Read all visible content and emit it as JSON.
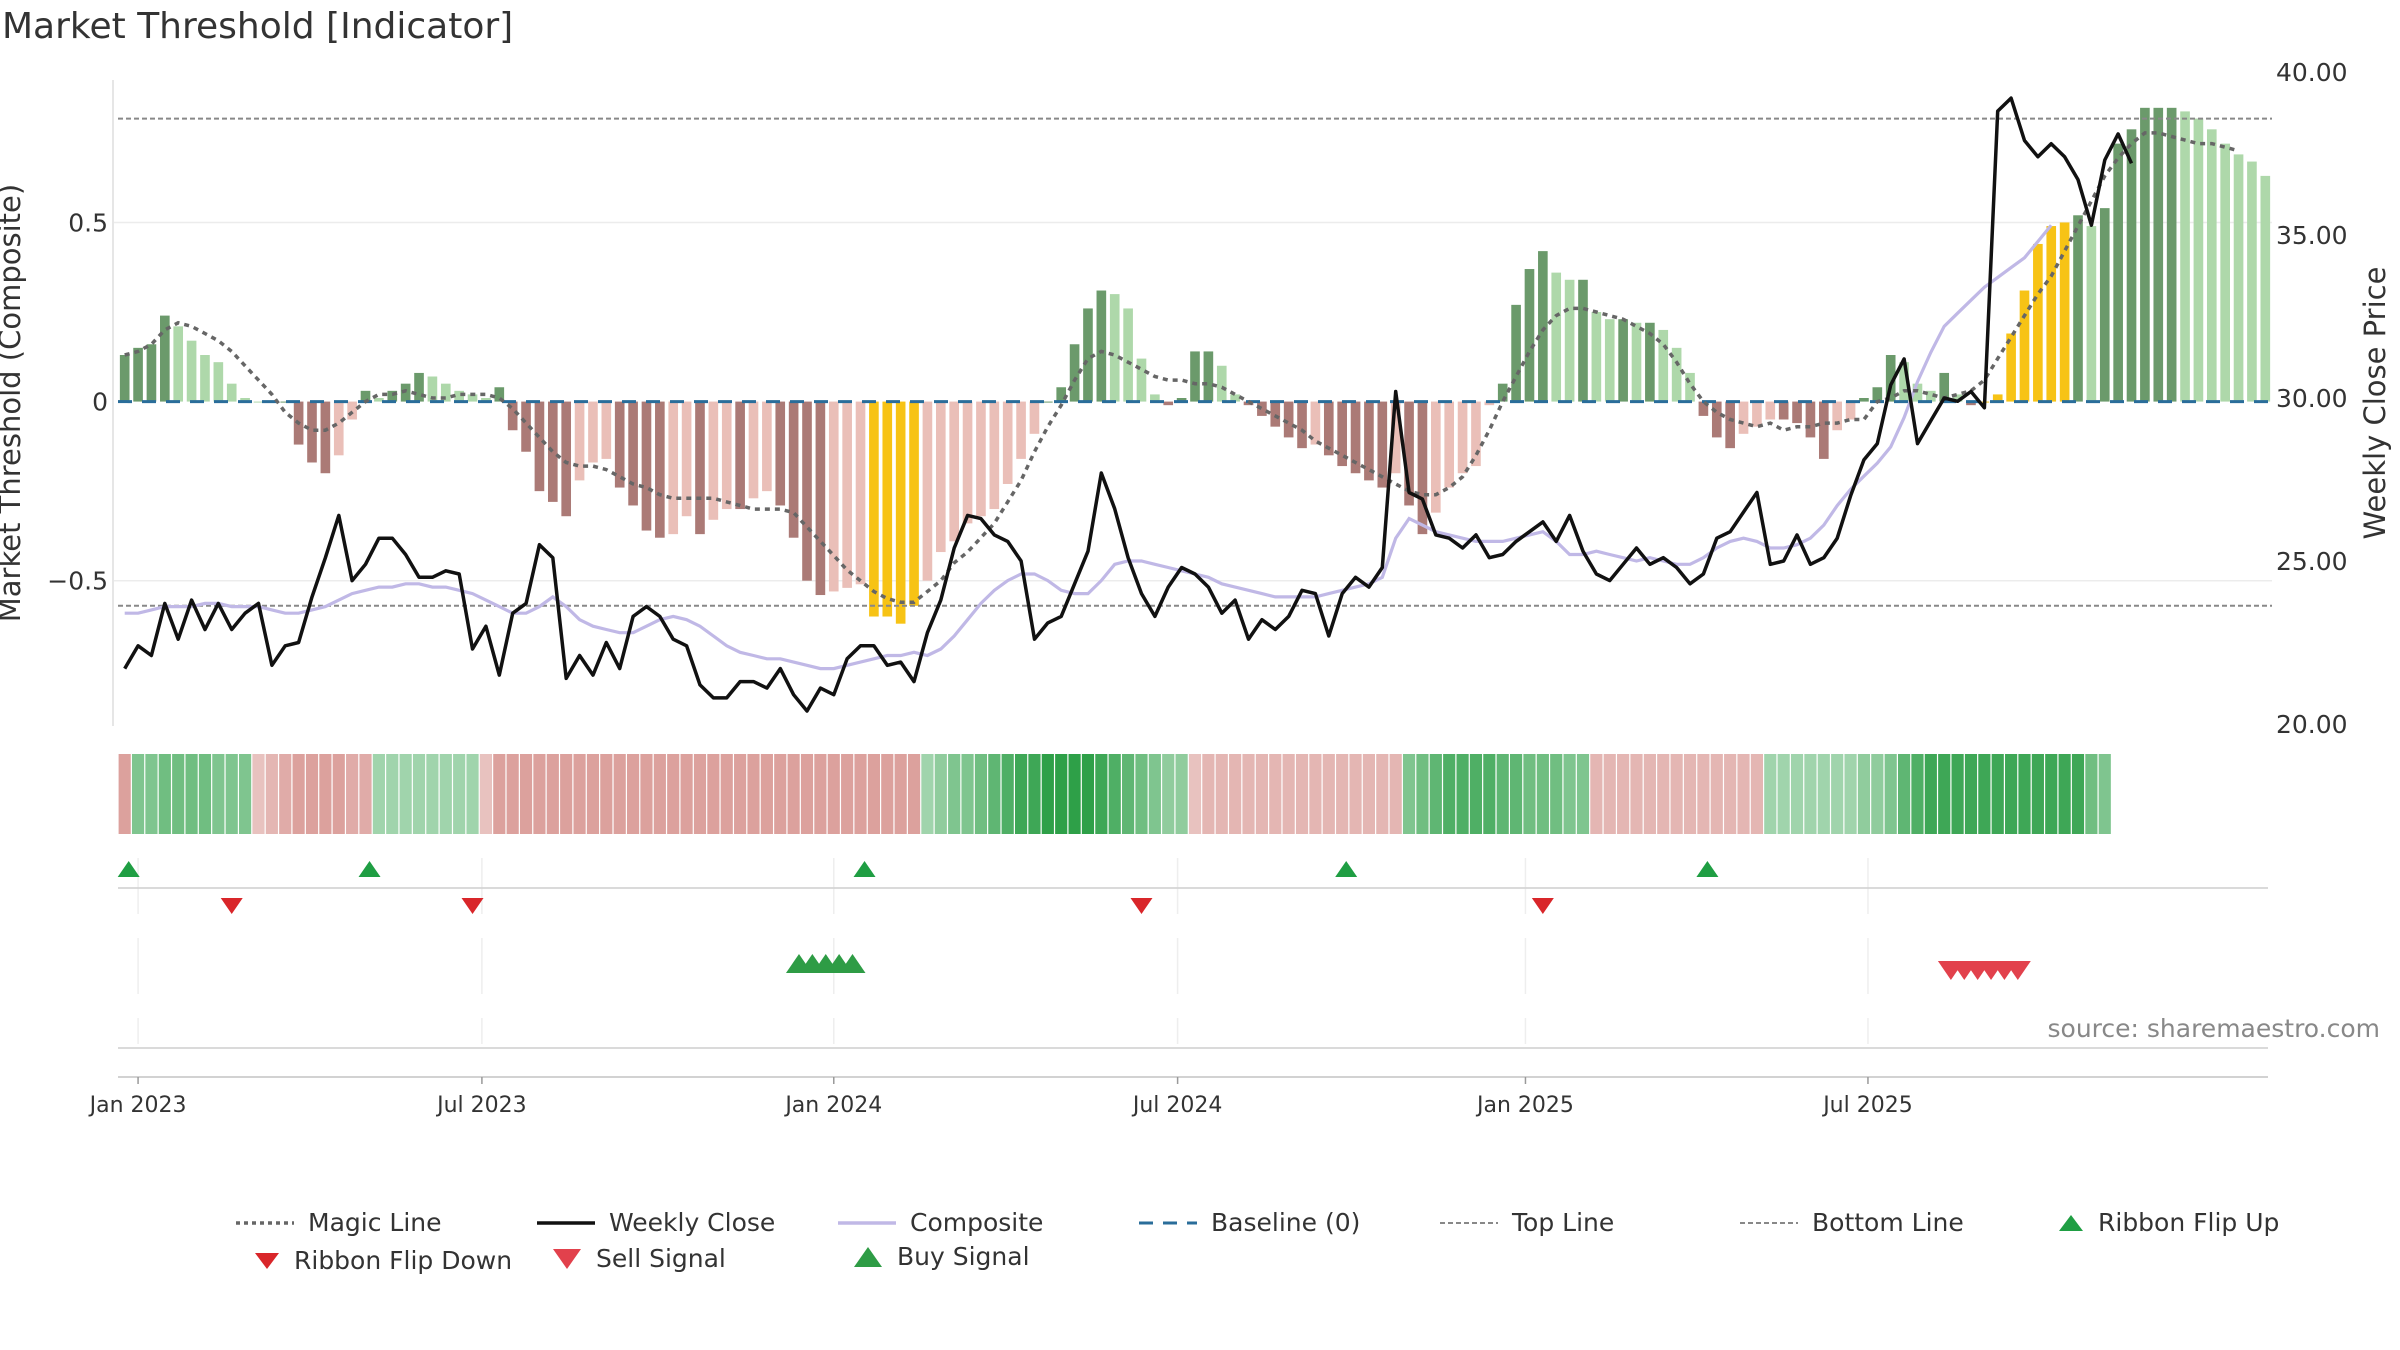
{
  "title": "Market Threshold [Indicator]",
  "source_note": "source: sharemaestro.com",
  "chart_data": {
    "type": "bar",
    "title": "Market Threshold [Indicator]",
    "ylabel_left": "Market Threshold (Composite)",
    "ylabel_right": "Weekly Close Price",
    "ylim_left": [
      -0.9,
      0.92
    ],
    "ylim_right": [
      20,
      40
    ],
    "yticks_left": [
      {
        "v": 0.5,
        "label": "0.5"
      },
      {
        "v": 0,
        "label": "0"
      },
      {
        "v": -0.5,
        "label": "−0.5"
      }
    ],
    "yticks_right": [
      {
        "v": 40,
        "label": "40.00"
      },
      {
        "v": 35,
        "label": "35.00"
      },
      {
        "v": 30,
        "label": "30.00"
      },
      {
        "v": 25,
        "label": "25.00"
      },
      {
        "v": 20,
        "label": "20.00"
      }
    ],
    "xticks": [
      {
        "week": 1,
        "label": "Jan 2023"
      },
      {
        "week": 26.7,
        "label": "Jul 2023"
      },
      {
        "week": 53,
        "label": "Jan 2024"
      },
      {
        "week": 78.7,
        "label": "Jul 2024"
      },
      {
        "week": 104.7,
        "label": "Jan 2025"
      },
      {
        "week": 130.3,
        "label": "Jul 2025"
      }
    ],
    "top_line": 0.79,
    "bottom_line": -0.57,
    "baseline": 0,
    "grid": true,
    "legend_position": "bottom",
    "histogram": [
      0.13,
      0.15,
      0.16,
      0.24,
      0.21,
      0.17,
      0.13,
      0.11,
      0.05,
      0.01,
      0,
      0,
      0,
      -0.12,
      -0.17,
      -0.2,
      -0.15,
      -0.05,
      0.03,
      0.01,
      0.03,
      0.05,
      0.08,
      0.07,
      0.05,
      0.03,
      0.02,
      0.01,
      0.04,
      -0.08,
      -0.14,
      -0.25,
      -0.28,
      -0.32,
      -0.22,
      -0.17,
      -0.16,
      -0.24,
      -0.29,
      -0.36,
      -0.38,
      -0.37,
      -0.32,
      -0.37,
      -0.33,
      -0.3,
      -0.3,
      -0.27,
      -0.25,
      -0.29,
      -0.38,
      -0.5,
      -0.54,
      -0.53,
      -0.52,
      -0.51,
      -0.6,
      -0.6,
      -0.62,
      -0.57,
      -0.5,
      -0.42,
      -0.39,
      -0.34,
      -0.32,
      -0.3,
      -0.23,
      -0.16,
      -0.09,
      0,
      0.04,
      0.16,
      0.26,
      0.31,
      0.3,
      0.26,
      0.12,
      0.02,
      -0.01,
      0.01,
      0.14,
      0.14,
      0.1,
      0.02,
      -0.01,
      -0.04,
      -0.07,
      -0.1,
      -0.13,
      -0.12,
      -0.15,
      -0.18,
      -0.2,
      -0.22,
      -0.24,
      -0.2,
      -0.29,
      -0.37,
      -0.31,
      -0.24,
      -0.2,
      -0.18,
      -0.01,
      0.05,
      0.27,
      0.37,
      0.42,
      0.36,
      0.34,
      0.34,
      0.25,
      0.23,
      0.23,
      0.22,
      0.22,
      0.2,
      0.15,
      0.08,
      -0.04,
      -0.1,
      -0.13,
      -0.09,
      -0.07,
      -0.05,
      -0.05,
      -0.06,
      -0.1,
      -0.16,
      -0.08,
      -0.05,
      0.01,
      0.04,
      0.13,
      0.11,
      0.05,
      0.03,
      0.08,
      0.02,
      -0.01,
      0,
      0.02,
      0.19,
      0.31,
      0.44,
      0.49,
      0.5,
      0.52,
      0.49,
      0.54,
      0.72,
      0.76,
      0.82,
      0.82,
      0.82,
      0.81,
      0.79,
      0.76,
      0.72,
      0.69,
      0.67,
      0.63
    ],
    "series": [
      {
        "name": "Magic Line",
        "values": [
          0.13,
          0.14,
          0.16,
          0.2,
          0.22,
          0.21,
          0.19,
          0.17,
          0.14,
          0.1,
          0.06,
          0.02,
          -0.03,
          -0.06,
          -0.08,
          -0.08,
          -0.06,
          -0.03,
          0,
          0.02,
          0.02,
          0.03,
          0.02,
          0.01,
          0.01,
          0.02,
          0.02,
          0.02,
          0.01,
          -0.02,
          -0.06,
          -0.1,
          -0.14,
          -0.17,
          -0.18,
          -0.18,
          -0.19,
          -0.21,
          -0.23,
          -0.24,
          -0.26,
          -0.27,
          -0.27,
          -0.27,
          -0.27,
          -0.28,
          -0.29,
          -0.3,
          -0.3,
          -0.3,
          -0.31,
          -0.35,
          -0.39,
          -0.43,
          -0.47,
          -0.5,
          -0.53,
          -0.55,
          -0.56,
          -0.56,
          -0.53,
          -0.5,
          -0.45,
          -0.42,
          -0.38,
          -0.34,
          -0.28,
          -0.22,
          -0.14,
          -0.07,
          -0.01,
          0.06,
          0.12,
          0.14,
          0.13,
          0.11,
          0.09,
          0.07,
          0.06,
          0.06,
          0.05,
          0.05,
          0.04,
          0.02,
          0,
          -0.02,
          -0.04,
          -0.06,
          -0.08,
          -0.11,
          -0.13,
          -0.15,
          -0.17,
          -0.19,
          -0.21,
          -0.23,
          -0.25,
          -0.26,
          -0.26,
          -0.24,
          -0.21,
          -0.15,
          -0.08,
          0,
          0.07,
          0.14,
          0.2,
          0.24,
          0.26,
          0.26,
          0.25,
          0.24,
          0.23,
          0.21,
          0.19,
          0.16,
          0.11,
          0.05,
          0,
          -0.03,
          -0.05,
          -0.06,
          -0.07,
          -0.06,
          -0.08,
          -0.07,
          -0.07,
          -0.06,
          -0.06,
          -0.05,
          -0.05,
          0,
          0.01,
          0.03,
          0.03,
          0.02,
          0.01,
          0.02,
          0.03,
          0.06,
          0.12,
          0.18,
          0.24,
          0.3,
          0.35,
          0.42,
          0.49,
          0.56,
          0.63,
          0.68,
          0.72,
          0.75,
          0.75,
          0.74,
          0.73,
          0.72,
          0.72,
          0.71,
          0.7
        ]
      },
      {
        "name": "Weekly Close",
        "values": [
          21.7,
          22.4,
          22.1,
          23.7,
          22.6,
          23.8,
          22.9,
          23.7,
          22.9,
          23.4,
          23.7,
          21.8,
          22.4,
          22.5,
          23.9,
          25.1,
          26.4,
          24.4,
          24.9,
          25.7,
          25.7,
          25.2,
          24.5,
          24.5,
          24.7,
          24.6,
          22.3,
          23.0,
          21.5,
          23.4,
          23.7,
          25.5,
          25.1,
          21.4,
          22.1,
          21.5,
          22.5,
          21.7,
          23.3,
          23.6,
          23.3,
          22.6,
          22.4,
          21.2,
          20.8,
          20.8,
          21.3,
          21.3,
          21.1,
          21.7,
          20.9,
          20.4,
          21.1,
          20.9,
          22.0,
          22.4,
          22.4,
          21.8,
          21.9,
          21.3,
          22.8,
          23.8,
          25.4,
          26.4,
          26.3,
          25.8,
          25.6,
          25.0,
          22.6,
          23.1,
          23.3,
          24.3,
          25.3,
          27.7,
          26.6,
          25.1,
          24.0,
          23.3,
          24.2,
          24.8,
          24.6,
          24.2,
          23.4,
          23.8,
          22.6,
          23.2,
          22.9,
          23.3,
          24.1,
          24.0,
          22.7,
          24.0,
          24.5,
          24.2,
          24.8,
          30.2,
          27.1,
          26.9,
          25.8,
          25.7,
          25.4,
          25.8,
          25.1,
          25.2,
          25.6,
          25.9,
          26.2,
          25.6,
          26.4,
          25.3,
          24.6,
          24.4,
          24.9,
          25.4,
          24.9,
          25.1,
          24.8,
          24.3,
          24.6,
          25.7,
          25.9,
          26.5,
          27.1,
          24.9,
          25.0,
          25.8,
          24.9,
          25.1,
          25.7,
          27.0,
          28.1,
          28.6,
          30.4,
          31.2,
          28.6,
          29.3,
          30.0,
          29.9,
          30.2,
          29.7,
          38.8,
          39.2,
          37.9,
          37.4,
          37.8,
          37.4,
          36.7,
          35.3,
          37.3,
          38.1,
          37.2
        ]
      },
      {
        "name": "Composite",
        "values": [
          23.4,
          23.4,
          23.5,
          23.6,
          23.6,
          23.6,
          23.7,
          23.7,
          23.6,
          23.6,
          23.6,
          23.5,
          23.4,
          23.4,
          23.5,
          23.6,
          23.8,
          24.0,
          24.1,
          24.2,
          24.2,
          24.3,
          24.3,
          24.2,
          24.2,
          24.1,
          24.0,
          23.8,
          23.6,
          23.4,
          23.4,
          23.6,
          23.9,
          23.6,
          23.2,
          23.0,
          22.9,
          22.8,
          22.8,
          23.0,
          23.2,
          23.3,
          23.2,
          23.0,
          22.7,
          22.4,
          22.2,
          22.1,
          22.0,
          22.0,
          21.9,
          21.8,
          21.7,
          21.7,
          21.8,
          21.9,
          22.0,
          22.1,
          22.1,
          22.2,
          22.1,
          22.3,
          22.7,
          23.2,
          23.7,
          24.1,
          24.4,
          24.6,
          24.6,
          24.4,
          24.1,
          24.0,
          24.0,
          24.4,
          24.9,
          25.0,
          25.0,
          24.9,
          24.8,
          24.7,
          24.6,
          24.5,
          24.3,
          24.2,
          24.1,
          24.0,
          23.9,
          23.9,
          23.9,
          23.9,
          24.0,
          24.1,
          24.2,
          24.3,
          24.5,
          25.7,
          26.3,
          26.1,
          25.9,
          25.8,
          25.7,
          25.6,
          25.6,
          25.6,
          25.7,
          25.8,
          25.9,
          25.6,
          25.2,
          25.2,
          25.3,
          25.2,
          25.1,
          25.0,
          25.1,
          25.0,
          24.9,
          24.9,
          25.1,
          25.4,
          25.6,
          25.7,
          25.6,
          25.4,
          25.4,
          25.5,
          25.7,
          26.1,
          26.7,
          27.2,
          27.6,
          28.0,
          28.5,
          29.4,
          30.5,
          31.4,
          32.2,
          32.6,
          33.0,
          33.4,
          33.7,
          34.0,
          34.3,
          34.8,
          35.3
        ]
      }
    ],
    "ribbon": [
      -0.6,
      0.5,
      0.5,
      0.6,
      0.6,
      0.6,
      0.6,
      0.5,
      0.5,
      0.5,
      -0.3,
      -0.4,
      -0.5,
      -0.6,
      -0.6,
      -0.6,
      -0.6,
      -0.5,
      -0.5,
      0.3,
      0.3,
      0.3,
      0.3,
      0.3,
      0.3,
      0.3,
      0.3,
      -0.3,
      -0.6,
      -0.6,
      -0.6,
      -0.6,
      -0.6,
      -0.6,
      -0.6,
      -0.6,
      -0.6,
      -0.6,
      -0.6,
      -0.6,
      -0.6,
      -0.6,
      -0.6,
      -0.6,
      -0.6,
      -0.6,
      -0.6,
      -0.6,
      -0.6,
      -0.6,
      -0.6,
      -0.6,
      -0.6,
      -0.6,
      -0.6,
      -0.6,
      -0.6,
      -0.6,
      -0.6,
      -0.6,
      0.3,
      0.4,
      0.5,
      0.5,
      0.6,
      0.7,
      0.8,
      0.9,
      0.9,
      1,
      1,
      1,
      1,
      0.9,
      0.8,
      0.7,
      0.6,
      0.5,
      0.4,
      0.4,
      -0.3,
      -0.4,
      -0.4,
      -0.4,
      -0.4,
      -0.4,
      -0.4,
      -0.4,
      -0.4,
      -0.4,
      -0.4,
      -0.4,
      -0.4,
      -0.4,
      -0.4,
      -0.4,
      0.5,
      0.6,
      0.7,
      0.8,
      0.8,
      0.8,
      0.8,
      0.7,
      0.7,
      0.6,
      0.6,
      0.6,
      0.5,
      0.5,
      -0.4,
      -0.4,
      -0.4,
      -0.4,
      -0.4,
      -0.4,
      -0.4,
      -0.4,
      -0.4,
      -0.4,
      -0.4,
      -0.4,
      -0.4,
      0.3,
      0.3,
      0.3,
      0.3,
      0.3,
      0.3,
      0.3,
      0.4,
      0.4,
      0.5,
      0.7,
      0.8,
      0.9,
      0.9,
      0.9,
      0.9,
      0.9,
      0.9,
      0.9,
      0.9,
      0.9,
      0.9,
      0.9,
      0.9,
      0.6,
      0.5
    ],
    "ribbon_flip_up": [
      1,
      19,
      56,
      92,
      119
    ],
    "ribbon_flip_down": [
      8,
      26,
      76,
      106
    ],
    "buy_signal": [
      50,
      51,
      52,
      53,
      54
    ],
    "sell_signal": [
      136,
      137,
      138,
      139,
      140,
      141
    ]
  },
  "legend": {
    "magic_line": "Magic Line",
    "weekly_close": "Weekly Close",
    "composite": "Composite",
    "baseline": "Baseline (0)",
    "top_line": "Top Line",
    "bottom_line": "Bottom Line",
    "ribbon_flip_up": "Ribbon Flip Up",
    "ribbon_flip_down": "Ribbon Flip Down",
    "sell_signal": "Sell Signal",
    "buy_signal": "Buy Signal"
  },
  "colors": {
    "dark_green": "#6b9a6b",
    "light_green": "#aed8aa",
    "dark_red": "#ab7a76",
    "light_red": "#eabfb8",
    "signal_gold": "#f7c315",
    "weekly_close": "#111111",
    "composite": "#c0b8e6",
    "magic_line": "#666666",
    "baseline": "#2a6d9a",
    "flip_up": "#1f9e43",
    "flip_down": "#d9262a",
    "sell": "#e2414c",
    "buy": "#2e9c45"
  }
}
